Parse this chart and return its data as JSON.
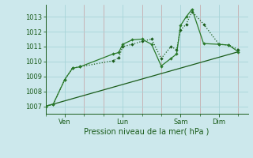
{
  "background_color": "#cce8ec",
  "grid_color_major": "#a8d4d8",
  "grid_color_minor": "#c4a0a0",
  "line_color_dark": "#1a5c1a",
  "line_color_mid": "#2a7a2a",
  "ylabel": "Pression niveau de la mer( hPa )",
  "ylim": [
    1006.5,
    1013.8
  ],
  "yticks": [
    1007,
    1008,
    1009,
    1010,
    1011,
    1012,
    1013
  ],
  "xtick_labels": [
    "Ven",
    "Lun",
    "Sam",
    "Dim"
  ],
  "xtick_positions": [
    1,
    4,
    7,
    9
  ],
  "xlim": [
    0,
    10.5
  ],
  "series1_x": [
    0.0,
    0.4,
    1.0,
    1.4,
    1.8,
    3.5,
    3.8,
    4.0,
    4.5,
    5.0,
    5.5,
    6.0,
    6.5,
    6.8,
    7.0,
    7.3,
    7.6,
    8.2,
    9.0,
    9.5,
    10.0
  ],
  "series1_y": [
    1007.0,
    1007.15,
    1008.8,
    1009.55,
    1009.65,
    1010.05,
    1010.25,
    1011.0,
    1011.15,
    1011.35,
    1011.5,
    1010.2,
    1011.0,
    1010.8,
    1012.1,
    1012.5,
    1013.35,
    1012.5,
    1011.15,
    1011.1,
    1010.8
  ],
  "series2_x": [
    0.0,
    0.4,
    1.0,
    1.4,
    1.8,
    3.5,
    3.8,
    4.0,
    4.5,
    5.0,
    5.5,
    6.0,
    6.5,
    6.8,
    7.0,
    7.3,
    7.6,
    8.2,
    9.0,
    9.5,
    10.0
  ],
  "series2_y": [
    1007.0,
    1007.15,
    1008.8,
    1009.55,
    1009.65,
    1010.5,
    1010.6,
    1011.15,
    1011.45,
    1011.5,
    1011.15,
    1009.7,
    1010.2,
    1010.5,
    1012.4,
    1013.0,
    1013.5,
    1011.2,
    1011.15,
    1011.1,
    1010.65
  ],
  "series3_x": [
    0.0,
    10.0
  ],
  "series3_y": [
    1007.0,
    1010.65
  ],
  "figsize": [
    3.2,
    2.0
  ],
  "dpi": 100
}
